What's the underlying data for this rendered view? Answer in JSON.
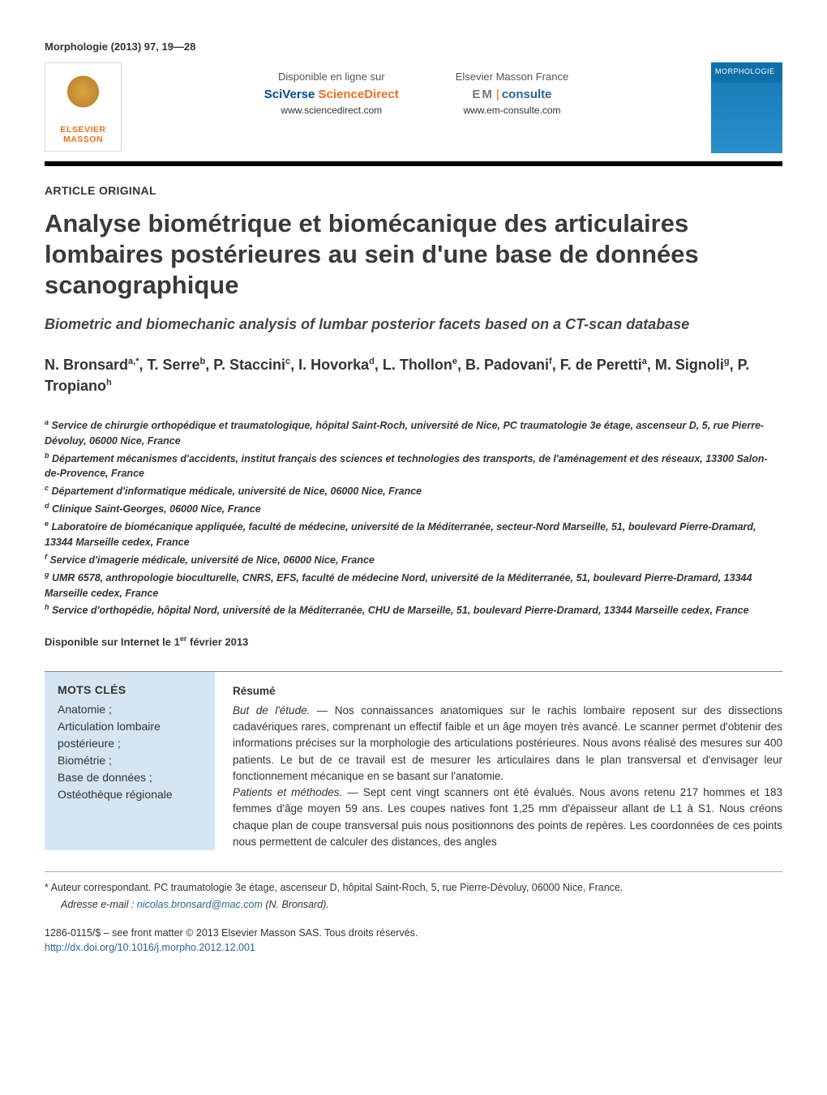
{
  "journal_ref": "Morphologie (2013) 97, 19—28",
  "publisher": {
    "line1": "ELSEVIER",
    "line2": "MASSON"
  },
  "header": {
    "left": {
      "label": "Disponible en ligne sur",
      "brand_prefix": "SciVerse ",
      "brand_suffix": "ScienceDirect",
      "url": "www.sciencedirect.com"
    },
    "right": {
      "label": "Elsevier Masson France",
      "brand_em": "EM",
      "brand_consulte": "consulte",
      "url": "www.em-consulte.com"
    },
    "cover_title": "MORPHOLOGIE"
  },
  "article_type": "ARTICLE ORIGINAL",
  "title_fr": "Analyse biométrique et biomécanique des articulaires lombaires postérieures au sein d'une base de données scanographique",
  "title_en": "Biometric and biomechanic analysis of lumbar posterior facets based on a CT-scan database",
  "authors_html": "N. Bronsard<sup>a,*</sup>, T. Serre<sup>b</sup>, P. Staccini<sup>c</sup>, I. Hovorka<sup>d</sup>, L. Thollon<sup>e</sup>, B. Padovani<sup>f</sup>, F. de Peretti<sup>a</sup>, M. Signoli<sup>g</sup>, P. Tropiano<sup>h</sup>",
  "affiliations": [
    {
      "sup": "a",
      "text": "Service de chirurgie orthopédique et traumatologique, hôpital Saint-Roch, université de Nice, PC traumatologie 3e étage, ascenseur D, 5, rue Pierre-Dévoluy, 06000 Nice, France"
    },
    {
      "sup": "b",
      "text": "Département mécanismes d'accidents, institut français des sciences et technologies des transports, de l'aménagement et des réseaux, 13300 Salon-de-Provence, France"
    },
    {
      "sup": "c",
      "text": "Département d'informatique médicale, université de Nice, 06000 Nice, France"
    },
    {
      "sup": "d",
      "text": "Clinique Saint-Georges, 06000 Nice, France"
    },
    {
      "sup": "e",
      "text": "Laboratoire de biomécanique appliquée, faculté de médecine, université de la Méditerranée, secteur-Nord Marseille, 51, boulevard Pierre-Dramard, 13344 Marseille cedex, France"
    },
    {
      "sup": "f",
      "text": "Service d'imagerie médicale, université de Nice, 06000 Nice, France"
    },
    {
      "sup": "g",
      "text": "UMR 6578, anthropologie bioculturelle, CNRS, EFS, faculté de médecine Nord, université de la Méditerranée, 51, boulevard Pierre-Dramard, 13344 Marseille cedex, France"
    },
    {
      "sup": "h",
      "text": "Service d'orthopédie, hôpital Nord, université de la Méditerranée, CHU de Marseille, 51, boulevard Pierre-Dramard, 13344 Marseille cedex, France"
    }
  ],
  "online_date_prefix": "Disponible sur Internet le 1",
  "online_date_sup": "er",
  "online_date_suffix": " février 2013",
  "keywords": {
    "heading": "MOTS CLÉS",
    "items": "Anatomie ;\nArticulation lombaire postérieure ;\nBiométrie ;\nBase de données ;\nOstéothèque régionale"
  },
  "abstract": {
    "heading": "Résumé",
    "but_label": "But de l'étude. — ",
    "but_text": "Nos connaissances anatomiques sur le rachis lombaire reposent sur des dissections cadavériques rares, comprenant un effectif faible et un âge moyen très avancé. Le scanner permet d'obtenir des informations précises sur la morphologie des articulations postérieures. Nous avons réalisé des mesures sur 400 patients. Le but de ce travail est de mesurer les articulaires dans le plan transversal et d'envisager leur fonctionnement mécanique en se basant sur l'anatomie.",
    "pat_label": "Patients et méthodes. — ",
    "pat_text": "Sept cent vingt scanners ont été évalués. Nous avons retenu 217 hommes et 183 femmes d'âge moyen 59 ans. Les coupes natives font 1,25 mm d'épaisseur allant de L1 à S1. Nous créons chaque plan de coupe transversal puis nous positionnons des points de repères. Les coordonnées de ces points nous permettent de calculer des distances, des angles"
  },
  "footer": {
    "corr_marker": "*",
    "corr_text": " Auteur correspondant. PC traumatologie 3e étage, ascenseur D, hôpital Saint-Roch, 5, rue Pierre-Dévoluy, 06000 Nice, France.",
    "email_label": "Adresse e-mail : ",
    "email": "nicolas.bronsard@mac.com",
    "email_author": " (N. Bronsard).",
    "issn_line": "1286-0115/$ – see front matter © 2013 Elsevier Masson SAS. Tous droits réservés.",
    "doi": "http://dx.doi.org/10.1016/j.morpho.2012.12.001"
  },
  "colors": {
    "accent_orange": "#e9711c",
    "link_blue": "#2a6496",
    "keywords_bg": "#d5e6f2",
    "cover_blue": "#0f6fa8"
  }
}
